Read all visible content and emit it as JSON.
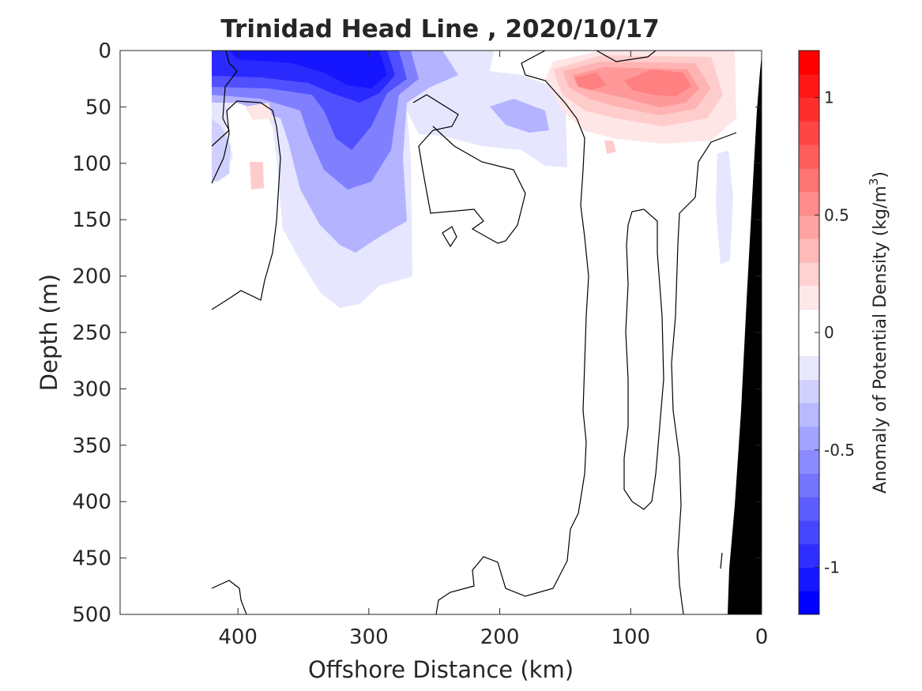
{
  "chart_data": {
    "type": "heatmap",
    "title": "Trinidad Head Line , 2020/10/17",
    "xlabel": "Offshore Distance (km)",
    "ylabel": "Depth (m)",
    "xlim": [
      490,
      0
    ],
    "ylim": [
      0,
      500
    ],
    "x_reversed": true,
    "y_reversed": true,
    "xticks": [
      400,
      300,
      200,
      100,
      0
    ],
    "yticks": [
      0,
      50,
      100,
      150,
      200,
      250,
      300,
      350,
      400,
      450,
      500
    ],
    "colorbar": {
      "label": "Anomaly of Potential Density (kg/m",
      "label_superscript": "3",
      "label_suffix": ")",
      "range": [
        -1.2,
        1.2
      ],
      "step": 0.1,
      "ticks": [
        1,
        0.5,
        0,
        -0.5,
        -1
      ],
      "tick_labels": [
        "1",
        "0.5",
        "0",
        "-0.5",
        "-1"
      ]
    },
    "negative_color": "#0000ff",
    "positive_color": "#ff0000",
    "land_color": "#000000",
    "zero_contour_color": "#000000",
    "features": [
      {
        "name": "surface negative anomaly core",
        "x": 300,
        "depth": 25,
        "value": -1.0
      },
      {
        "name": "subsurface negative lobe",
        "x": 320,
        "depth": 110,
        "value": -0.5
      },
      {
        "name": "surface positive anomaly core",
        "x": 80,
        "depth": 25,
        "value": 0.5
      },
      {
        "name": "nearshore positive anomaly",
        "x": 130,
        "depth": 25,
        "value": 0.4
      }
    ],
    "data_extent_x": [
      420,
      20
    ]
  }
}
